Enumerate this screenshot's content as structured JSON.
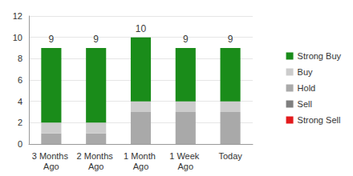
{
  "chart_data": {
    "type": "bar",
    "stacked": true,
    "categories": [
      "3 Months Ago",
      "2 Months Ago",
      "1 Month Ago",
      "1 Week Ago",
      "Today"
    ],
    "series": [
      {
        "name": "Strong Buy",
        "color": "#1a8c1a",
        "values": [
          7,
          7,
          6,
          5,
          5
        ]
      },
      {
        "name": "Buy",
        "color": "#cccccc",
        "values": [
          1,
          1,
          1,
          1,
          1
        ]
      },
      {
        "name": "Hold",
        "color": "#a9a9a9",
        "values": [
          1,
          1,
          3,
          3,
          3
        ]
      },
      {
        "name": "Sell",
        "color": "#7f7f7f",
        "values": [
          0,
          0,
          0,
          0,
          0
        ]
      },
      {
        "name": "Strong Sell",
        "color": "#e31a1c",
        "values": [
          0,
          0,
          0,
          0,
          0
        ]
      }
    ],
    "totals": [
      9,
      9,
      10,
      9,
      9
    ],
    "ylim": [
      0,
      12
    ],
    "yticks": [
      0,
      2,
      4,
      6,
      8,
      10,
      12
    ],
    "grid": true,
    "legend": "right",
    "data_labels": false
  }
}
